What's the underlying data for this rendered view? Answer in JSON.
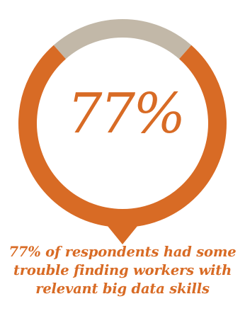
{
  "chart_data": {
    "type": "pie",
    "style": "ring-with-pointer",
    "values": [
      77,
      23
    ],
    "percent_label": "77%",
    "colors": [
      "#d86b25",
      "#c2b8a8"
    ]
  },
  "caption": "77% of respondents had some trouble finding workers with relevant big data skills"
}
